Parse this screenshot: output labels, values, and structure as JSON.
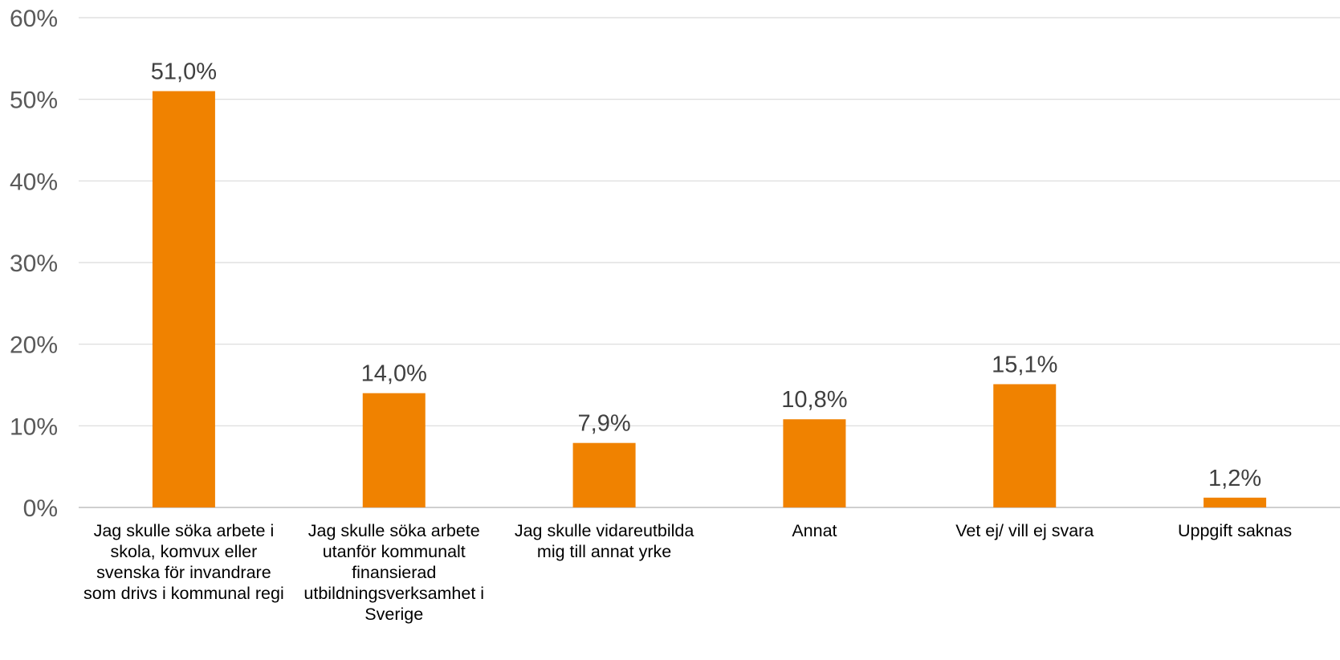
{
  "chart_data": {
    "type": "bar",
    "categories": [
      "Jag skulle söka arbete i skola, komvux eller svenska för invandrare som drivs i kommunal regi",
      "Jag skulle söka arbete utanför kommunalt finansierad utbildningsverksamhet i Sverige",
      "Jag skulle vidareutbilda mig till annat yrke",
      "Annat",
      "Vet ej/ vill ej svara",
      "Uppgift saknas"
    ],
    "values": [
      51.0,
      14.0,
      7.9,
      10.8,
      15.1,
      1.2
    ],
    "data_labels": [
      "51,0%",
      "14,0%",
      "7,9%",
      "10,8%",
      "15,1%",
      "1,2%"
    ],
    "y_ticks": [
      "0%",
      "10%",
      "20%",
      "30%",
      "40%",
      "50%",
      "60%"
    ],
    "ylim": [
      0,
      60
    ],
    "grid": true,
    "legend": "none",
    "colors": {
      "bar": "#F08200",
      "grid": "#D9D9D9",
      "axis": "#BFBFBF"
    }
  }
}
